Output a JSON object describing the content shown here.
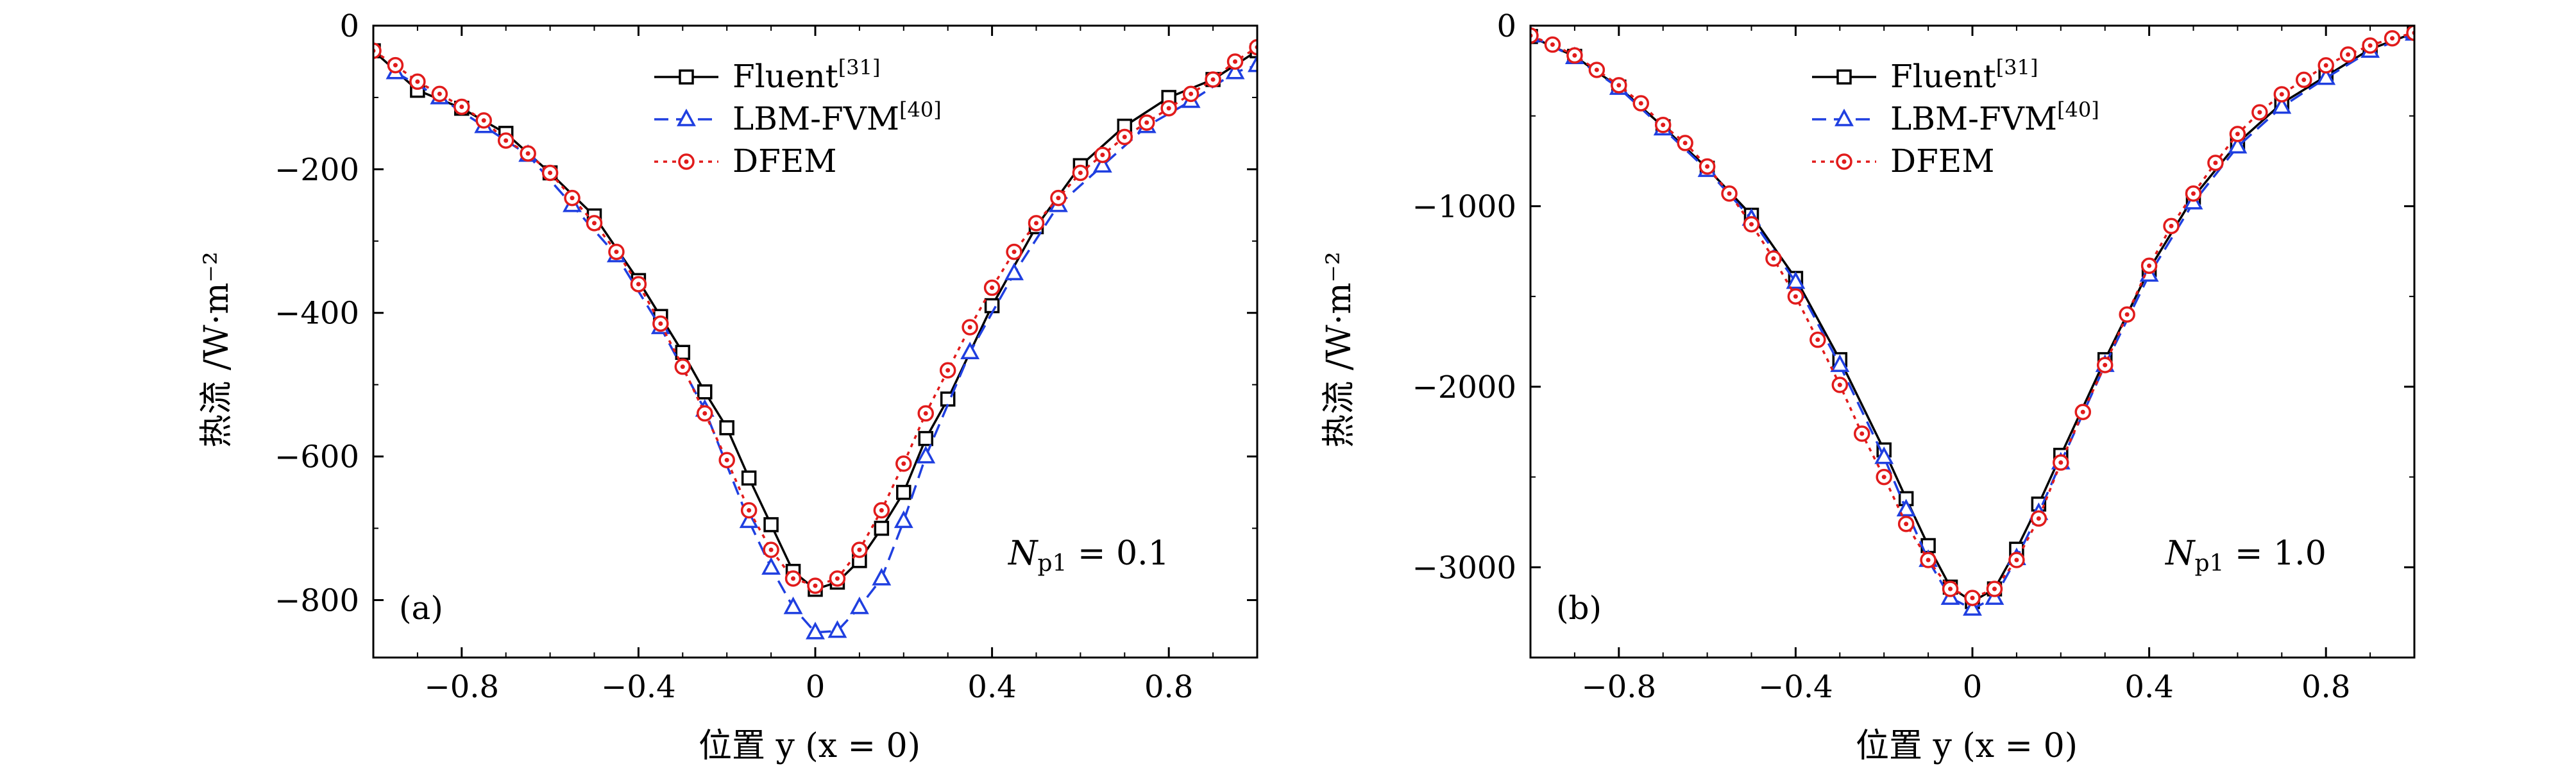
{
  "chart_data": [
    {
      "panel": "(a)",
      "type": "line",
      "xlabel": "位置 y (x = 0)",
      "ylabel": "热流 /W·m⁻²",
      "xlim": [
        -1.0,
        1.0
      ],
      "ylim": [
        -880,
        0
      ],
      "xticks": [
        -0.8,
        -0.4,
        0,
        0.4,
        0.8
      ],
      "xtick_labels": [
        "−0.8",
        "−0.4",
        "0",
        "0.4",
        "0.8"
      ],
      "yticks": [
        0,
        -200,
        -400,
        -600,
        -800
      ],
      "ytick_labels": [
        "0",
        "−200",
        "−400",
        "−600",
        "−800"
      ],
      "annotation": {
        "main": "N",
        "sub": "p1",
        "rest": " = 0.1"
      },
      "legend": {
        "placement": "top-center"
      },
      "series": [
        {
          "name": "Fluent",
          "name_sup": "[31]",
          "color": "#000000",
          "marker": "square",
          "dash": "solid",
          "x": [
            -1.0,
            -0.9,
            -0.8,
            -0.7,
            -0.6,
            -0.5,
            -0.4,
            -0.35,
            -0.3,
            -0.25,
            -0.2,
            -0.15,
            -0.1,
            -0.05,
            0,
            0.05,
            0.1,
            0.15,
            0.2,
            0.25,
            0.3,
            0.4,
            0.5,
            0.6,
            0.7,
            0.8,
            0.9,
            1.0
          ],
          "y": [
            -35,
            -90,
            -115,
            -150,
            -205,
            -265,
            -355,
            -405,
            -455,
            -510,
            -560,
            -630,
            -695,
            -760,
            -785,
            -775,
            -745,
            -700,
            -650,
            -575,
            -520,
            -390,
            -280,
            -195,
            -140,
            -100,
            -75,
            -35
          ]
        },
        {
          "name": "LBM-FVM",
          "name_sup": "[40]",
          "color": "#1f3fe0",
          "marker": "triangle",
          "dash": "dashed",
          "x": [
            -0.95,
            -0.85,
            -0.75,
            -0.65,
            -0.55,
            -0.45,
            -0.35,
            -0.25,
            -0.15,
            -0.1,
            -0.05,
            0,
            0.05,
            0.1,
            0.15,
            0.2,
            0.25,
            0.35,
            0.45,
            0.55,
            0.65,
            0.75,
            0.85,
            0.95,
            1.0
          ],
          "y": [
            -65,
            -100,
            -140,
            -180,
            -250,
            -320,
            -420,
            -535,
            -690,
            -755,
            -810,
            -845,
            -843,
            -810,
            -770,
            -690,
            -600,
            -455,
            -345,
            -250,
            -195,
            -140,
            -105,
            -65,
            -55
          ]
        },
        {
          "name": "DFEM",
          "name_sup": "",
          "color": "#e11b1b",
          "marker": "circle",
          "dash": "dotted",
          "x": [
            -1.0,
            -0.95,
            -0.9,
            -0.85,
            -0.8,
            -0.75,
            -0.7,
            -0.65,
            -0.6,
            -0.55,
            -0.5,
            -0.45,
            -0.4,
            -0.35,
            -0.3,
            -0.25,
            -0.2,
            -0.15,
            -0.1,
            -0.05,
            0,
            0.05,
            0.1,
            0.15,
            0.2,
            0.25,
            0.3,
            0.35,
            0.4,
            0.45,
            0.5,
            0.55,
            0.6,
            0.65,
            0.7,
            0.75,
            0.8,
            0.85,
            0.9,
            0.95,
            1.0
          ],
          "y": [
            -35,
            -55,
            -78,
            -95,
            -113,
            -132,
            -160,
            -178,
            -205,
            -240,
            -275,
            -315,
            -360,
            -415,
            -475,
            -540,
            -605,
            -675,
            -730,
            -770,
            -780,
            -770,
            -730,
            -675,
            -610,
            -540,
            -480,
            -420,
            -365,
            -315,
            -275,
            -240,
            -205,
            -180,
            -155,
            -135,
            -115,
            -95,
            -75,
            -50,
            -30
          ]
        }
      ]
    },
    {
      "panel": "(b)",
      "type": "line",
      "xlabel": "位置 y (x = 0)",
      "ylabel": "热流 /W·m⁻²",
      "xlim": [
        -1.0,
        1.0
      ],
      "ylim": [
        -3500,
        0
      ],
      "xticks": [
        -0.8,
        -0.4,
        0,
        0.4,
        0.8
      ],
      "xtick_labels": [
        "−0.8",
        "−0.4",
        "0",
        "0.4",
        "0.8"
      ],
      "yticks": [
        0,
        -1000,
        -2000,
        -3000
      ],
      "ytick_labels": [
        "0",
        "−1000",
        "−2000",
        "−3000"
      ],
      "annotation": {
        "main": "N",
        "sub": "p1",
        "rest": " = 1.0"
      },
      "legend": {
        "placement": "top-center"
      },
      "series": [
        {
          "name": "Fluent",
          "name_sup": "[31]",
          "color": "#000000",
          "marker": "square",
          "dash": "solid",
          "x": [
            -1.0,
            -0.9,
            -0.8,
            -0.7,
            -0.6,
            -0.5,
            -0.4,
            -0.3,
            -0.2,
            -0.15,
            -0.1,
            -0.05,
            0,
            0.05,
            0.1,
            0.15,
            0.2,
            0.3,
            0.4,
            0.5,
            0.6,
            0.7,
            0.8,
            0.9,
            1.0
          ],
          "y": [
            -60,
            -170,
            -340,
            -560,
            -790,
            -1050,
            -1400,
            -1850,
            -2350,
            -2620,
            -2880,
            -3110,
            -3190,
            -3120,
            -2900,
            -2650,
            -2380,
            -1850,
            -1350,
            -950,
            -650,
            -430,
            -280,
            -130,
            -40
          ]
        },
        {
          "name": "LBM-FVM",
          "name_sup": "[40]",
          "color": "#1f3fe0",
          "marker": "triangle",
          "dash": "dashed",
          "x": [
            -1.0,
            -0.9,
            -0.8,
            -0.7,
            -0.6,
            -0.5,
            -0.4,
            -0.3,
            -0.2,
            -0.15,
            -0.1,
            -0.05,
            0,
            0.05,
            0.1,
            0.15,
            0.2,
            0.3,
            0.4,
            0.5,
            0.6,
            0.7,
            0.8,
            0.9,
            1.0
          ],
          "y": [
            -55,
            -175,
            -345,
            -570,
            -800,
            -1070,
            -1420,
            -1880,
            -2390,
            -2680,
            -2960,
            -3170,
            -3230,
            -3170,
            -2950,
            -2700,
            -2420,
            -1880,
            -1380,
            -980,
            -670,
            -450,
            -290,
            -140,
            -45
          ]
        },
        {
          "name": "DFEM",
          "name_sup": "",
          "color": "#e11b1b",
          "marker": "circle",
          "dash": "dotted",
          "x": [
            -1.0,
            -0.95,
            -0.9,
            -0.85,
            -0.8,
            -0.75,
            -0.7,
            -0.65,
            -0.6,
            -0.55,
            -0.5,
            -0.45,
            -0.4,
            -0.35,
            -0.3,
            -0.25,
            -0.2,
            -0.15,
            -0.1,
            -0.05,
            0,
            0.05,
            0.1,
            0.15,
            0.2,
            0.25,
            0.3,
            0.35,
            0.4,
            0.45,
            0.5,
            0.55,
            0.6,
            0.65,
            0.7,
            0.75,
            0.8,
            0.85,
            0.9,
            0.95,
            1.0
          ],
          "y": [
            -55,
            -105,
            -165,
            -245,
            -330,
            -430,
            -550,
            -650,
            -780,
            -930,
            -1100,
            -1290,
            -1500,
            -1740,
            -1990,
            -2260,
            -2500,
            -2760,
            -2960,
            -3120,
            -3170,
            -3120,
            -2960,
            -2730,
            -2420,
            -2140,
            -1880,
            -1600,
            -1330,
            -1110,
            -930,
            -760,
            -600,
            -480,
            -380,
            -300,
            -220,
            -160,
            -110,
            -70,
            -40
          ]
        }
      ]
    }
  ]
}
